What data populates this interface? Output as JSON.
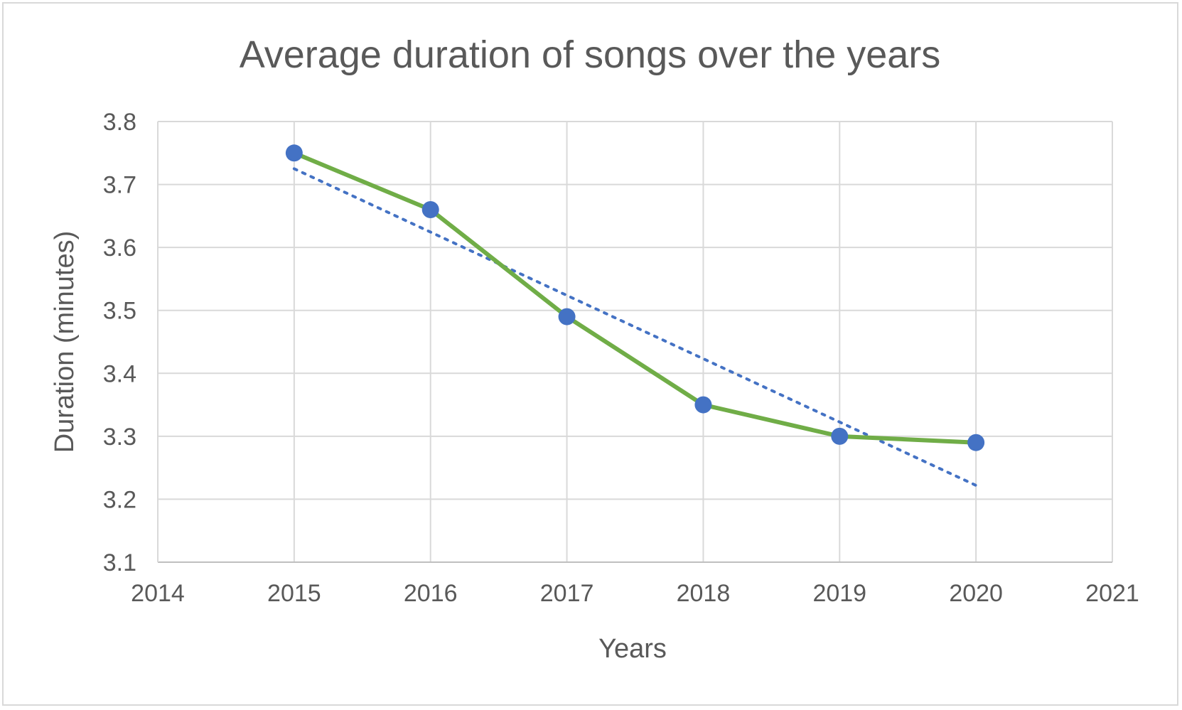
{
  "chart_data": {
    "type": "line",
    "title": "Average duration of songs over the years",
    "xlabel": "Years",
    "ylabel": "Duration (minutes)",
    "xlim": [
      2014,
      2021
    ],
    "ylim": [
      3.1,
      3.8
    ],
    "x_ticks": [
      "2014",
      "2015",
      "2016",
      "2017",
      "2018",
      "2019",
      "2020",
      "2021"
    ],
    "y_ticks": [
      "3.1",
      "3.2",
      "3.3",
      "3.4",
      "3.5",
      "3.6",
      "3.7",
      "3.8"
    ],
    "grid": true,
    "legend": "none",
    "series": [
      {
        "x": [
          2015,
          2016,
          2017,
          2018,
          2019,
          2020
        ],
        "y": [
          3.75,
          3.66,
          3.49,
          3.35,
          3.3,
          3.29
        ],
        "line_color": "#70ad47",
        "marker_color": "#4472c4"
      }
    ],
    "trendline": {
      "type": "linear",
      "style": "dotted",
      "color": "#4472c4",
      "x": [
        2015,
        2020
      ],
      "y": [
        3.725,
        3.222
      ]
    }
  }
}
